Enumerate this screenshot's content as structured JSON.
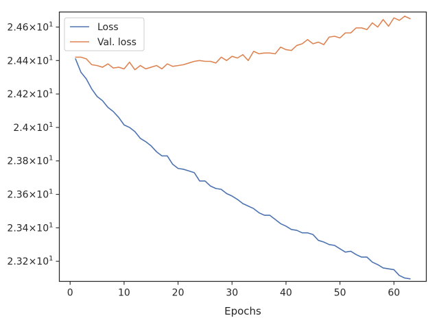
{
  "chart_data": {
    "type": "line",
    "xlabel": "Epochs",
    "ylabel": "",
    "xlim": [
      -2,
      66
    ],
    "ylim": [
      23.08,
      24.69
    ],
    "x_ticks": [
      0,
      10,
      20,
      30,
      40,
      50,
      60
    ],
    "x_tick_labels": [
      "0",
      "10",
      "20",
      "30",
      "40",
      "50",
      "60"
    ],
    "y_ticks": [
      23.2,
      23.4,
      23.6,
      23.8,
      24.0,
      24.2,
      24.4,
      24.6
    ],
    "y_tick_labels": [
      {
        "mantissa": "2.32",
        "times": "×",
        "base": "10",
        "exp": "1"
      },
      {
        "mantissa": "2.34",
        "times": "×",
        "base": "10",
        "exp": "1"
      },
      {
        "mantissa": "2.36",
        "times": "×",
        "base": "10",
        "exp": "1"
      },
      {
        "mantissa": "2.38",
        "times": "×",
        "base": "10",
        "exp": "1"
      },
      {
        "mantissa": "2.4",
        "times": "×",
        "base": "10",
        "exp": "1"
      },
      {
        "mantissa": "2.42",
        "times": "×",
        "base": "10",
        "exp": "1"
      },
      {
        "mantissa": "2.44",
        "times": "×",
        "base": "10",
        "exp": "1"
      },
      {
        "mantissa": "2.46",
        "times": "×",
        "base": "10",
        "exp": "1"
      }
    ],
    "grid": false,
    "legend_position": "top-left",
    "x": [
      1,
      2,
      3,
      4,
      5,
      6,
      7,
      8,
      9,
      10,
      11,
      12,
      13,
      14,
      15,
      16,
      17,
      18,
      19,
      20,
      21,
      22,
      23,
      24,
      25,
      26,
      27,
      28,
      29,
      30,
      31,
      32,
      33,
      34,
      35,
      36,
      37,
      38,
      39,
      40,
      41,
      42,
      43,
      44,
      45,
      46,
      47,
      48,
      49,
      50,
      51,
      52,
      53,
      54,
      55,
      56,
      57,
      58,
      59,
      60,
      61,
      62,
      63
    ],
    "series": [
      {
        "name": "Loss",
        "color": "#4c72b0",
        "values": [
          24.41,
          24.33,
          24.29,
          24.23,
          24.185,
          24.16,
          24.12,
          24.095,
          24.06,
          24.015,
          24.0,
          23.975,
          23.935,
          23.915,
          23.89,
          23.855,
          23.83,
          23.83,
          23.78,
          23.755,
          23.75,
          23.74,
          23.73,
          23.68,
          23.68,
          23.65,
          23.635,
          23.63,
          23.605,
          23.59,
          23.57,
          23.545,
          23.53,
          23.515,
          23.49,
          23.475,
          23.475,
          23.45,
          23.425,
          23.41,
          23.39,
          23.385,
          23.37,
          23.37,
          23.36,
          23.325,
          23.315,
          23.3,
          23.295,
          23.275,
          23.255,
          23.26,
          23.24,
          23.225,
          23.225,
          23.195,
          23.18,
          23.16,
          23.155,
          23.15,
          23.115,
          23.1,
          23.095
        ]
      },
      {
        "name": "Val. loss",
        "color": "#dd8452",
        "values": [
          24.42,
          24.42,
          24.41,
          24.375,
          24.37,
          24.36,
          24.38,
          24.355,
          24.36,
          24.35,
          24.39,
          24.345,
          24.37,
          24.35,
          24.36,
          24.37,
          24.35,
          24.38,
          24.365,
          24.37,
          24.375,
          24.385,
          24.395,
          24.4,
          24.395,
          24.395,
          24.385,
          24.42,
          24.4,
          24.425,
          24.415,
          24.435,
          24.4,
          24.455,
          24.44,
          24.445,
          24.445,
          24.44,
          24.48,
          24.465,
          24.46,
          24.49,
          24.5,
          24.525,
          24.5,
          24.51,
          24.495,
          24.54,
          24.545,
          24.535,
          24.565,
          24.565,
          24.595,
          24.595,
          24.585,
          24.625,
          24.6,
          24.645,
          24.605,
          24.655,
          24.64,
          24.665,
          24.65
        ]
      }
    ]
  }
}
